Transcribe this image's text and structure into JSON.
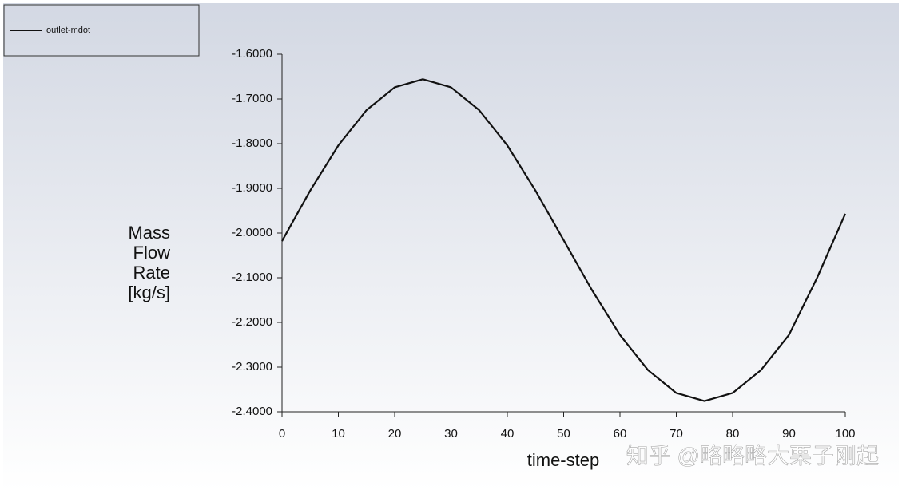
{
  "chart_data": {
    "type": "line",
    "legend_label": "outlet-mdot",
    "y_label": [
      "Mass",
      "Flow",
      "Rate",
      "[kg/s]"
    ],
    "x_label": "time-step",
    "watermark": "知乎 @略略略大栗子刚起",
    "x": [
      0,
      5,
      10,
      15,
      20,
      25,
      30,
      35,
      40,
      45,
      50,
      55,
      60,
      65,
      70,
      75,
      80,
      85,
      90,
      95,
      100
    ],
    "series": [
      {
        "name": "outlet-mdot",
        "color": "#111111",
        "values": [
          -2.018,
          -1.905,
          -1.804,
          -1.725,
          -1.674,
          -1.656,
          -1.674,
          -1.725,
          -1.804,
          -1.905,
          -2.016,
          -2.127,
          -2.228,
          -2.307,
          -2.358,
          -2.376,
          -2.358,
          -2.307,
          -2.228,
          -2.1,
          -1.957
        ]
      }
    ],
    "xlim": [
      0,
      100
    ],
    "xticks": [
      0,
      10,
      20,
      30,
      40,
      50,
      60,
      70,
      80,
      90,
      100
    ],
    "ylim": [
      -2.4,
      -1.6
    ],
    "yticks": [
      {
        "value": -1.6,
        "label": "-1.6000"
      },
      {
        "value": -1.7,
        "label": "-1.7000"
      },
      {
        "value": -1.8,
        "label": "-1.8000"
      },
      {
        "value": -1.9,
        "label": "-1.9000"
      },
      {
        "value": -2.0,
        "label": "-2.0000"
      },
      {
        "value": -2.1,
        "label": "-2.1000"
      },
      {
        "value": -2.2,
        "label": "-2.2000"
      },
      {
        "value": -2.3,
        "label": "-2.3000"
      },
      {
        "value": -2.4,
        "label": "-2.4000"
      }
    ]
  }
}
